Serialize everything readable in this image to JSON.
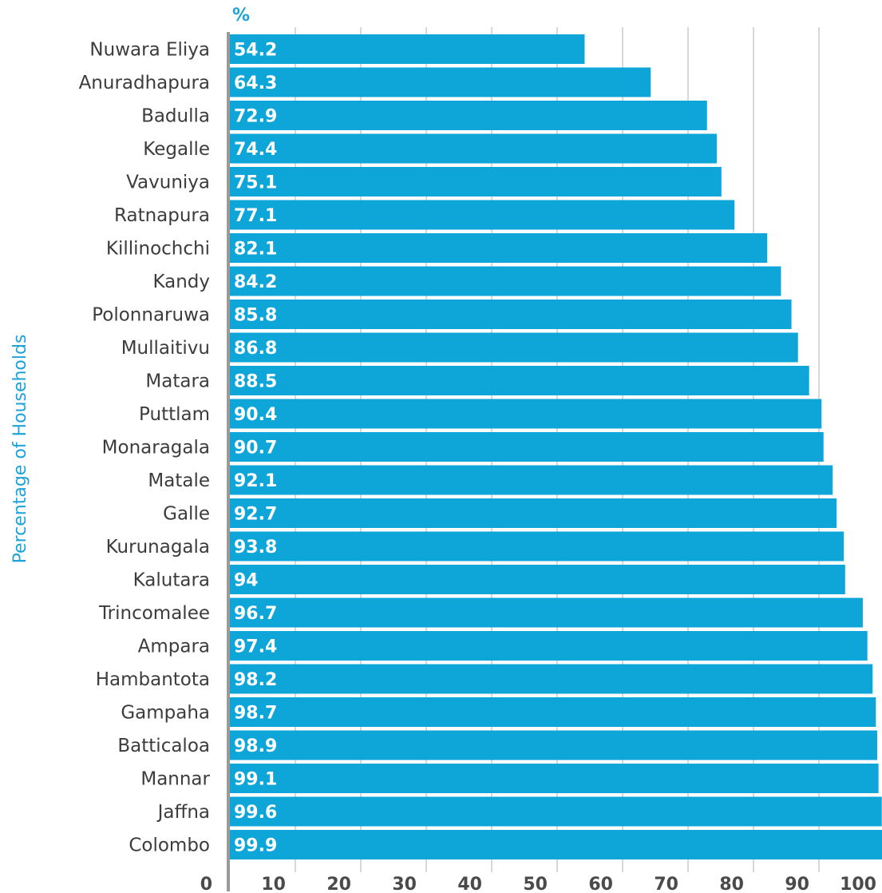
{
  "chart_data": {
    "type": "bar",
    "orientation": "horizontal",
    "categories": [
      "Nuwara Eliya",
      "Anuradhapura",
      "Badulla",
      "Kegalle",
      "Vavuniya",
      "Ratnapura",
      "Killinochchi",
      "Kandy",
      "Polonnaruwa",
      "Mullaitivu",
      "Matara",
      "Puttlam",
      "Monaragala",
      "Matale",
      "Galle",
      "Kurunagala",
      "Kalutara",
      "Trincomalee",
      "Ampara",
      "Hambantota",
      "Gampaha",
      "Batticaloa",
      "Mannar",
      "Jaffna",
      "Colombo"
    ],
    "values": [
      54.2,
      64.3,
      72.9,
      74.4,
      75.1,
      77.1,
      82.1,
      84.2,
      85.8,
      86.8,
      88.5,
      90.4,
      90.7,
      92.1,
      92.7,
      93.8,
      94,
      96.7,
      97.4,
      98.2,
      98.7,
      98.9,
      99.1,
      99.6,
      99.9
    ],
    "value_labels": [
      "54.2",
      "64.3",
      "72.9",
      "74.4",
      "75.1",
      "77.1",
      "82.1",
      "84.2",
      "85.8",
      "86.8",
      "88.5",
      "90.4",
      "90.7",
      "92.1",
      "92.7",
      "93.8",
      "94",
      "96.7",
      "97.4",
      "98.2",
      "98.7",
      "98.9",
      "99.1",
      "99.6",
      "99.9"
    ],
    "ylabel": "Percentage of Households",
    "unit_label": "%",
    "xlim": [
      0,
      100
    ],
    "xticks": [
      0,
      10,
      20,
      30,
      40,
      50,
      60,
      70,
      80,
      90,
      100
    ],
    "grid": true,
    "legend": "none",
    "colors": {
      "bar": "#0ea5d9",
      "accent": "#1fa3d6",
      "grid": "#cccccc",
      "axis": "#9a9a9a"
    }
  }
}
